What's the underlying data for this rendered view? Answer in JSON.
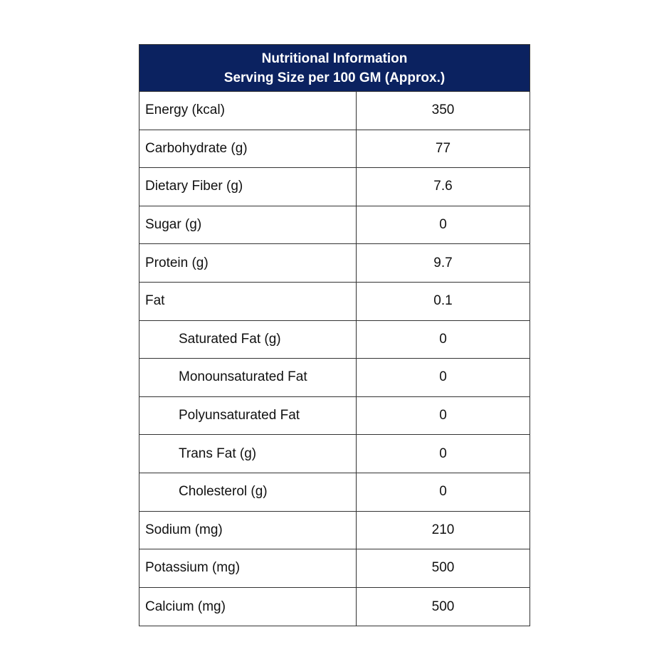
{
  "header": {
    "title": "Nutritional Information",
    "subtitle": "Serving Size per 100 GM (Approx.)",
    "color": "#0b2260"
  },
  "rows": [
    {
      "name": "Energy (kcal)",
      "value": "350",
      "indent": false
    },
    {
      "name": "Carbohydrate (g)",
      "value": "77",
      "indent": false
    },
    {
      "name": "Dietary Fiber (g)",
      "value": "7.6",
      "indent": false
    },
    {
      "name": "Sugar (g)",
      "value": "0",
      "indent": false
    },
    {
      "name": "Protein (g)",
      "value": "9.7",
      "indent": false
    },
    {
      "name": "Fat",
      "value": "0.1",
      "indent": false
    },
    {
      "name": "Saturated Fat (g)",
      "value": "0",
      "indent": true
    },
    {
      "name": "Monounsaturated Fat",
      "value": "0",
      "indent": true
    },
    {
      "name": "Polyunsaturated Fat",
      "value": "0",
      "indent": true
    },
    {
      "name": "Trans Fat (g)",
      "value": "0",
      "indent": true
    },
    {
      "name": "Cholesterol (g)",
      "value": "0",
      "indent": true
    },
    {
      "name": "Sodium (mg)",
      "value": "210",
      "indent": false
    },
    {
      "name": "Potassium (mg)",
      "value": "500",
      "indent": false
    },
    {
      "name": "Calcium (mg)",
      "value": "500",
      "indent": false
    }
  ]
}
